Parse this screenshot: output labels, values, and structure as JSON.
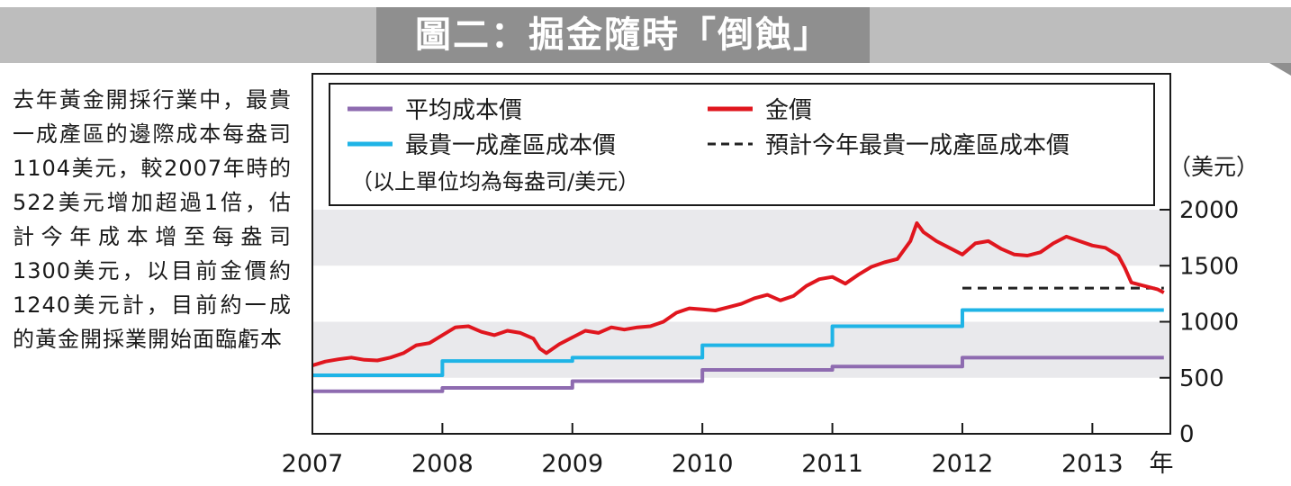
{
  "title": "圖二：掘金隨時「倒蝕」",
  "caption": "去年黃金開採行業中，最貴一成產區的邊際成本每盎司1104美元，較2007年時的522美元增加超過1倍，估計今年成本增至每盎司1300美元，以目前金價約1240美元計，目前約一成的黃金開採業開始面臨虧本",
  "colors": {
    "gold": "#e0161e",
    "top10": "#1fb4e6",
    "avg": "#8e6bb0",
    "forecast": "#222222",
    "band": "#e9e9ec",
    "title_bg": "#8f8f8f",
    "strip_bg": "#bdbdbd"
  },
  "chart_data": {
    "type": "line",
    "unit_label": "（美元）",
    "x_unit": "年",
    "xlim": [
      2007,
      2013.6
    ],
    "ylim": [
      0,
      2000
    ],
    "x_ticks": [
      2007,
      2008,
      2009,
      2010,
      2011,
      2012,
      2013
    ],
    "x_tick_labels": [
      "2007",
      "2008",
      "2009",
      "2010",
      "2011",
      "2012",
      "2013"
    ],
    "y_ticks": [
      0,
      500,
      1000,
      1500,
      2000
    ],
    "y_tick_labels": [
      "0",
      "500",
      "1000",
      "1500",
      "2000"
    ],
    "shaded_bands": [
      [
        500,
        1000
      ],
      [
        1500,
        2000
      ]
    ],
    "legend": {
      "entries": [
        {
          "key": "avg",
          "label": "平均成本價",
          "style": "solid"
        },
        {
          "key": "gold",
          "label": "金價",
          "style": "solid"
        },
        {
          "key": "top10",
          "label": "最貴一成產區成本價",
          "style": "solid"
        },
        {
          "key": "forecast",
          "label": "預計今年最貴一成產區成本價",
          "style": "dashed"
        }
      ],
      "note": "（以上單位均為每盎司/美元）"
    },
    "series": [
      {
        "key": "gold",
        "name": "金價",
        "style": "line",
        "x": [
          2007.0,
          2007.1,
          2007.2,
          2007.3,
          2007.4,
          2007.5,
          2007.6,
          2007.7,
          2007.8,
          2007.9,
          2008.0,
          2008.1,
          2008.2,
          2008.3,
          2008.4,
          2008.5,
          2008.6,
          2008.7,
          2008.75,
          2008.8,
          2008.9,
          2009.0,
          2009.1,
          2009.2,
          2009.3,
          2009.4,
          2009.5,
          2009.6,
          2009.7,
          2009.8,
          2009.9,
          2010.0,
          2010.1,
          2010.2,
          2010.3,
          2010.4,
          2010.5,
          2010.6,
          2010.7,
          2010.8,
          2010.9,
          2011.0,
          2011.1,
          2011.2,
          2011.3,
          2011.4,
          2011.5,
          2011.6,
          2011.65,
          2011.7,
          2011.8,
          2011.9,
          2012.0,
          2012.1,
          2012.2,
          2012.3,
          2012.4,
          2012.5,
          2012.6,
          2012.7,
          2012.8,
          2012.9,
          2013.0,
          2013.1,
          2013.2,
          2013.25,
          2013.3,
          2013.4,
          2013.5,
          2013.55
        ],
        "values": [
          610,
          645,
          665,
          680,
          660,
          655,
          680,
          720,
          790,
          810,
          880,
          950,
          960,
          910,
          880,
          920,
          900,
          850,
          760,
          720,
          800,
          860,
          920,
          900,
          950,
          930,
          950,
          960,
          1000,
          1080,
          1120,
          1110,
          1100,
          1130,
          1160,
          1210,
          1240,
          1190,
          1230,
          1320,
          1380,
          1400,
          1340,
          1420,
          1490,
          1530,
          1560,
          1720,
          1880,
          1800,
          1720,
          1660,
          1600,
          1700,
          1720,
          1650,
          1600,
          1590,
          1620,
          1700,
          1760,
          1720,
          1680,
          1660,
          1590,
          1480,
          1350,
          1320,
          1290,
          1260
        ]
      },
      {
        "key": "top10",
        "name": "最貴一成產區成本價",
        "style": "step",
        "x": [
          2007,
          2008,
          2009,
          2010,
          2011,
          2012,
          2013.55
        ],
        "values": [
          522,
          650,
          680,
          790,
          960,
          1104,
          1104
        ]
      },
      {
        "key": "avg",
        "name": "平均成本價",
        "style": "step",
        "x": [
          2007,
          2008,
          2009,
          2010,
          2011,
          2012,
          2013.55
        ],
        "values": [
          380,
          410,
          470,
          570,
          600,
          680,
          680
        ]
      },
      {
        "key": "forecast",
        "name": "預計今年最貴一成產區成本價",
        "style": "dashed",
        "x": [
          2012,
          2013.55
        ],
        "values": [
          1300,
          1300
        ]
      }
    ]
  }
}
